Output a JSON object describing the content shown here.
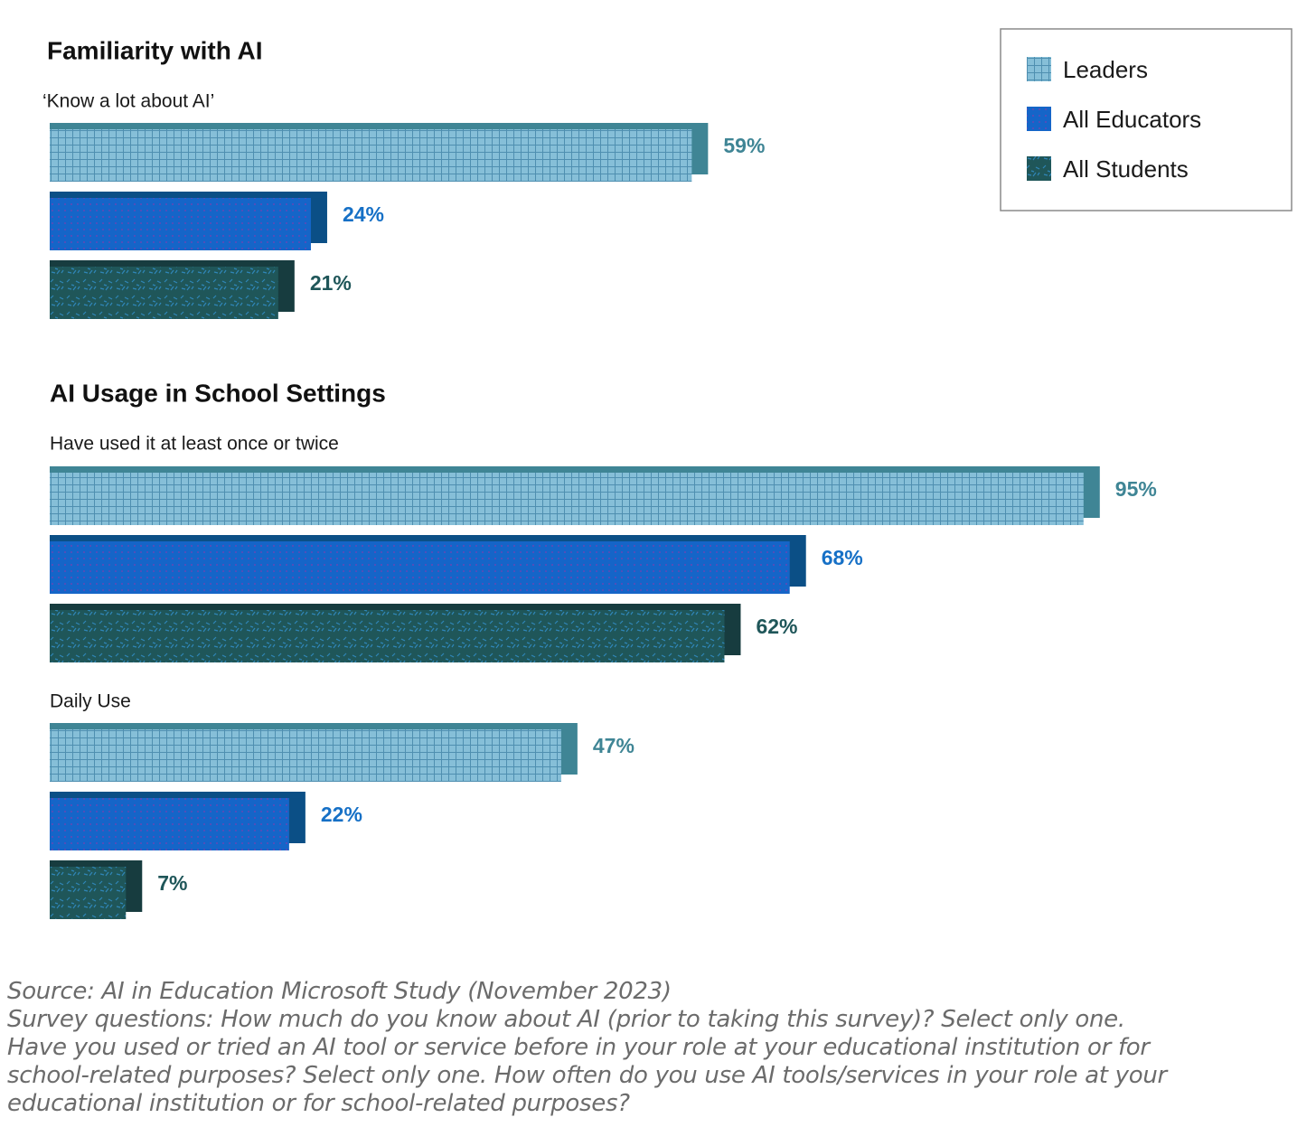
{
  "legend": {
    "items": [
      {
        "label": "Leaders",
        "color": "#7fb9d4",
        "pattern": "grid"
      },
      {
        "label": "All Educators",
        "color": "#1565c8",
        "pattern": "dots"
      },
      {
        "label": "All Students",
        "color": "#1f5659",
        "pattern": "dashes"
      }
    ]
  },
  "chart_data": {
    "type": "bar",
    "orientation": "horizontal",
    "series_names": [
      "Leaders",
      "All Educators",
      "All Students"
    ],
    "colors": {
      "Leaders": {
        "fill": "#7fb9d4",
        "shadow": "#3f8595",
        "label": "#3f8595"
      },
      "All Educators": {
        "fill": "#1565c8",
        "shadow": "#0b4f86",
        "label": "#1670c6"
      },
      "All Students": {
        "fill": "#1f5659",
        "shadow": "#173c3f",
        "label": "#1f5659"
      }
    },
    "sections": [
      {
        "title": "Familiarity with AI",
        "groups": [
          {
            "label": "‘Know a lot about AI’",
            "values": [
              59,
              24,
              21
            ]
          }
        ]
      },
      {
        "title": "AI Usage in School Settings",
        "groups": [
          {
            "label": "Have used it at least once or twice",
            "values": [
              95,
              68,
              62
            ]
          },
          {
            "label": "Daily Use",
            "values": [
              47,
              22,
              7
            ]
          }
        ]
      }
    ],
    "unit": "%",
    "xlim": [
      0,
      100
    ]
  },
  "footnote": {
    "lines": [
      "Source: AI in Education Microsoft Study (November 2023)",
      "Survey questions: How much do you know about AI (prior to taking this survey)? Select only one.",
      "Have you used or tried an AI tool or service before in your role at your educational institution or for",
      "school-related purposes? Select only one. How often do you use AI tools/services in your role at your",
      "educational institution or for school-related purposes?"
    ]
  }
}
